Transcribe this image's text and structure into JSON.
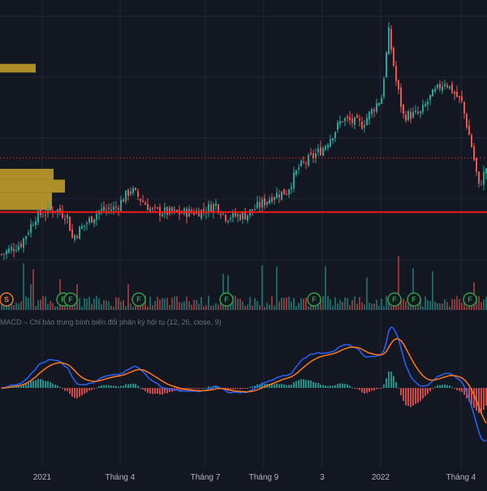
{
  "colors": {
    "background": "#131722",
    "grid": "#232734",
    "candle_up": "#26a69a",
    "candle_down": "#ef5350",
    "support_line": "#f21b1b",
    "resistance_dots": "#d05555",
    "volume_profile": "#d4ad2a",
    "macd_line": "#2962ff",
    "signal_line": "#ff7a1a",
    "hist_up": "#26a69a",
    "hist_down": "#ef5350",
    "badge_green": "#2ea043",
    "badge_orange": "#e0783a"
  },
  "indicator": {
    "caption": "MACD – Chỉ báo trung bình biến đổi phân kỳ hội tụ (12, 26, close, 9)"
  },
  "badges": [
    {
      "label": "S",
      "kind": "orange",
      "bar": 0
    },
    {
      "label": "F",
      "kind": "green",
      "bar": 25
    },
    {
      "label": "F",
      "kind": "green",
      "bar": 28
    },
    {
      "label": "F",
      "kind": "green",
      "bar": 56
    },
    {
      "label": "F",
      "kind": "green",
      "bar": 92
    },
    {
      "label": "F",
      "kind": "green",
      "bar": 128
    },
    {
      "label": "F",
      "kind": "green",
      "bar": 161
    },
    {
      "label": "F",
      "kind": "green",
      "bar": 169
    },
    {
      "label": "F",
      "kind": "green",
      "bar": 192
    }
  ],
  "chart_data": {
    "type": "candlestick",
    "title": "",
    "x_tick_labels": [
      {
        "label": "2021",
        "bar": 17
      },
      {
        "label": "Tháng 4",
        "bar": 49
      },
      {
        "label": "Tháng 7",
        "bar": 84
      },
      {
        "label": "Tháng 9",
        "bar": 108
      },
      {
        "label": "3",
        "bar": 132
      },
      {
        "label": "2022",
        "bar": 156
      },
      {
        "label": "Tháng 4",
        "bar": 189
      }
    ],
    "price_range": [
      0,
      100
    ],
    "price_path": [
      {
        "bar": 0,
        "close": 20
      },
      {
        "bar": 8,
        "close": 30
      },
      {
        "bar": 14,
        "close": 55
      },
      {
        "bar": 22,
        "close": 62
      },
      {
        "bar": 27,
        "close": 55
      },
      {
        "bar": 29,
        "close": 35
      },
      {
        "bar": 33,
        "close": 45
      },
      {
        "bar": 40,
        "close": 60
      },
      {
        "bar": 47,
        "close": 63
      },
      {
        "bar": 53,
        "close": 80
      },
      {
        "bar": 62,
        "close": 60
      },
      {
        "bar": 72,
        "close": 58
      },
      {
        "bar": 82,
        "close": 60
      },
      {
        "bar": 88,
        "close": 66
      },
      {
        "bar": 92,
        "close": 55
      },
      {
        "bar": 100,
        "close": 56
      },
      {
        "bar": 112,
        "close": 75
      },
      {
        "bar": 117,
        "close": 78
      },
      {
        "bar": 122,
        "close": 100
      },
      {
        "bar": 132,
        "close": 118
      },
      {
        "bar": 140,
        "close": 145
      },
      {
        "bar": 148,
        "close": 140
      },
      {
        "bar": 156,
        "close": 165
      },
      {
        "bar": 159,
        "close": 225
      },
      {
        "bar": 162,
        "close": 180
      },
      {
        "bar": 165,
        "close": 148
      },
      {
        "bar": 172,
        "close": 150
      },
      {
        "bar": 176,
        "close": 165
      },
      {
        "bar": 182,
        "close": 180
      },
      {
        "bar": 189,
        "close": 160
      },
      {
        "bar": 193,
        "close": 120
      },
      {
        "bar": 196,
        "close": 82
      },
      {
        "bar": 199,
        "close": 100
      }
    ],
    "support_level": 59,
    "resistance_level": 109,
    "volume_profile": [
      {
        "low": 61,
        "high": 77,
        "size": 64
      },
      {
        "low": 77,
        "high": 89,
        "size": 80
      },
      {
        "low": 89,
        "high": 99,
        "size": 66
      },
      {
        "low": 188,
        "high": 196,
        "size": 44
      }
    ],
    "series": [
      {
        "name": "MACD",
        "role": "macd"
      },
      {
        "name": "Signal",
        "role": "signal"
      },
      {
        "name": "Histogram",
        "role": "histogram"
      }
    ]
  }
}
